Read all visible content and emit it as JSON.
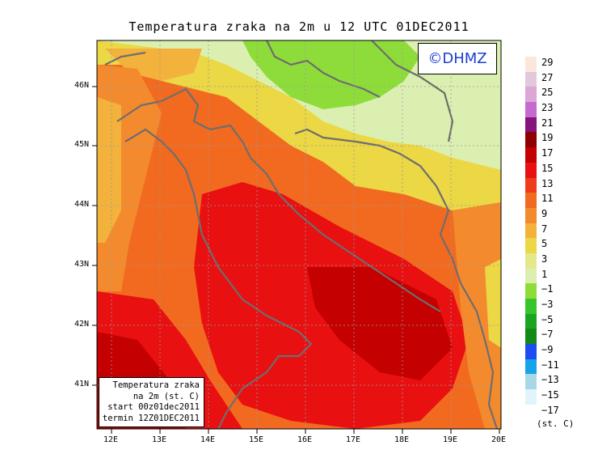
{
  "title": "Temperatura zraka na 2m u 12 UTC 01DEC2011",
  "copyright": "©DHMZ",
  "info_box": {
    "line1": "Temperatura zraka",
    "line2": "na 2m (st. C)",
    "line3": "start 00z01dec2011",
    "line4": "termin 12Z01DEC2011"
  },
  "lat_labels": [
    "46N",
    "45N",
    "44N",
    "43N",
    "42N",
    "41N"
  ],
  "lon_labels": [
    "12E",
    "13E",
    "14E",
    "15E",
    "16E",
    "17E",
    "18E",
    "19E",
    "20E"
  ],
  "legend": {
    "unit": "(st. C)",
    "items": [
      {
        "label": "29",
        "color": "#fbe7d9"
      },
      {
        "label": "27",
        "color": "#e2c7dd"
      },
      {
        "label": "25",
        "color": "#dca6d6"
      },
      {
        "label": "23",
        "color": "#c46ad0"
      },
      {
        "label": "21",
        "color": "#85157a"
      },
      {
        "label": "19",
        "color": "#8f0000"
      },
      {
        "label": "17",
        "color": "#c40000"
      },
      {
        "label": "15",
        "color": "#e81010"
      },
      {
        "label": "13",
        "color": "#f03a1c"
      },
      {
        "label": "11",
        "color": "#f16a20"
      },
      {
        "label": "9",
        "color": "#f38a2e"
      },
      {
        "label": "7",
        "color": "#f2b23c"
      },
      {
        "label": "5",
        "color": "#ecd745"
      },
      {
        "label": "3",
        "color": "#e4e88a"
      },
      {
        "label": "1",
        "color": "#dbf0b0"
      },
      {
        "label": "−1",
        "color": "#8edc3a"
      },
      {
        "label": "−3",
        "color": "#38c52c"
      },
      {
        "label": "−5",
        "color": "#1aa520"
      },
      {
        "label": "−7",
        "color": "#118a18"
      },
      {
        "label": "−9",
        "color": "#1f4cf0"
      },
      {
        "label": "−11",
        "color": "#17a3e8"
      },
      {
        "label": "−13",
        "color": "#a8d8e8"
      },
      {
        "label": "−15",
        "color": "#dff5fb"
      },
      {
        "label": "−17",
        "color": "#ffffff"
      }
    ]
  }
}
